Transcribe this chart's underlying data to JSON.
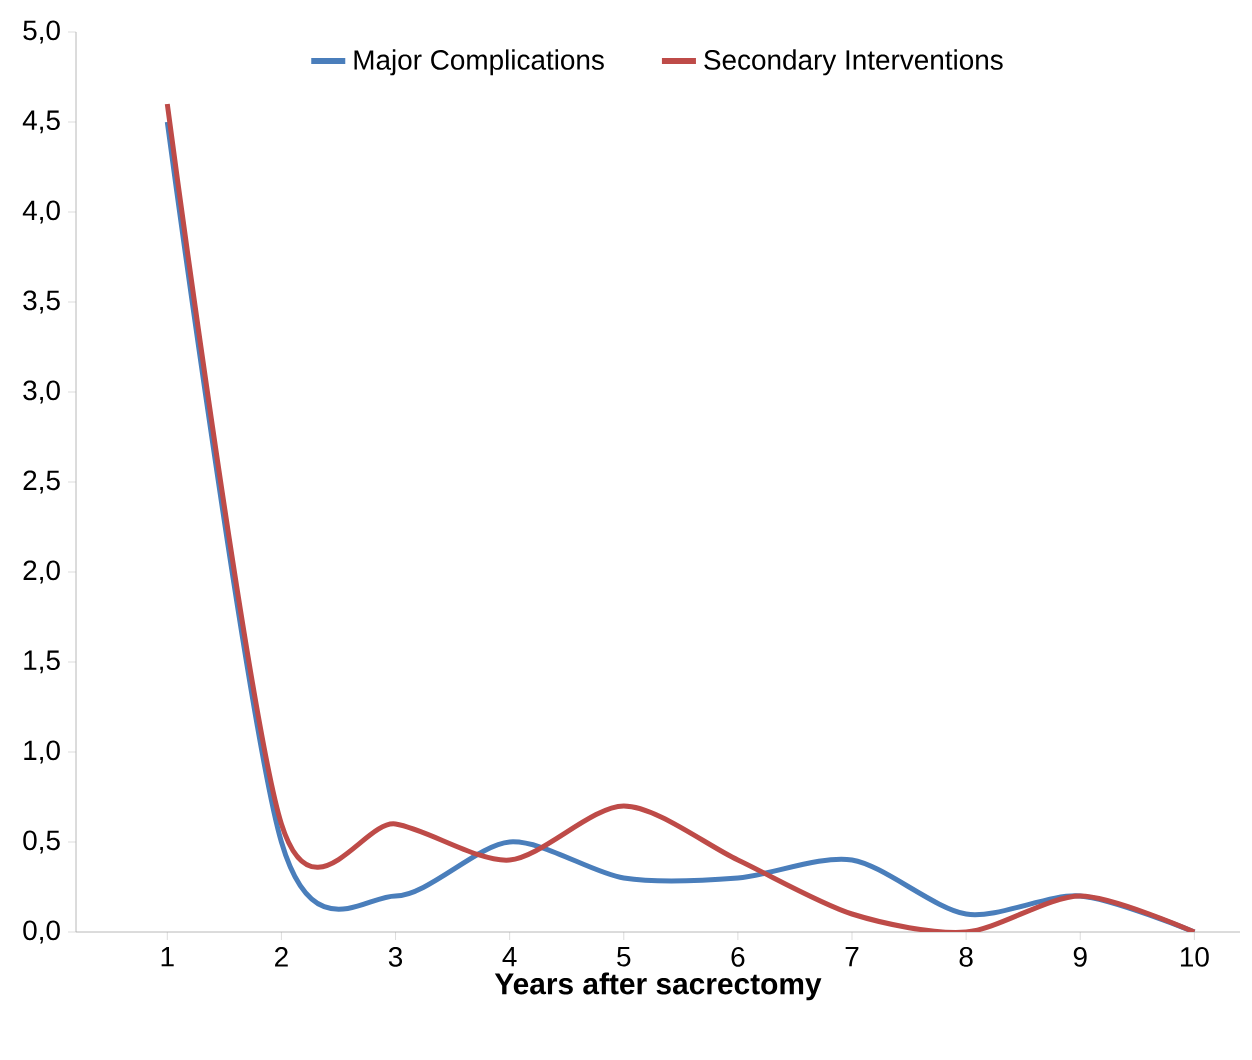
{
  "chart_data": {
    "type": "line",
    "xlabel": "Years after sacrectomy",
    "categories": [
      "1",
      "2",
      "3",
      "4",
      "5",
      "6",
      "7",
      "8",
      "9",
      "10"
    ],
    "series": [
      {
        "name": "Major Complications",
        "color": "#4a7ebb",
        "values": [
          4.5,
          0.5,
          0.2,
          0.5,
          0.3,
          0.3,
          0.4,
          0.1,
          0.2,
          0.0
        ]
      },
      {
        "name": "Secondary Interventions",
        "color": "#be4b48",
        "values": [
          4.6,
          0.6,
          0.6,
          0.4,
          0.7,
          0.4,
          0.1,
          0.0,
          0.2,
          0.0
        ]
      }
    ],
    "ylim": [
      0,
      5
    ],
    "yticks": [
      {
        "value": 0,
        "label": "0,0"
      },
      {
        "value": 0.5,
        "label": "0,5"
      },
      {
        "value": 1,
        "label": "1,0"
      },
      {
        "value": 1.5,
        "label": "1,5"
      },
      {
        "value": 2,
        "label": "2,0"
      },
      {
        "value": 2.5,
        "label": "2,5"
      },
      {
        "value": 3,
        "label": "3,0"
      },
      {
        "value": 3.5,
        "label": "3,5"
      },
      {
        "value": 4,
        "label": "4,0"
      },
      {
        "value": 4.5,
        "label": "4,5"
      },
      {
        "value": 5,
        "label": "5,0"
      }
    ],
    "legend": "top",
    "marker": "none",
    "line_style": "solid"
  }
}
